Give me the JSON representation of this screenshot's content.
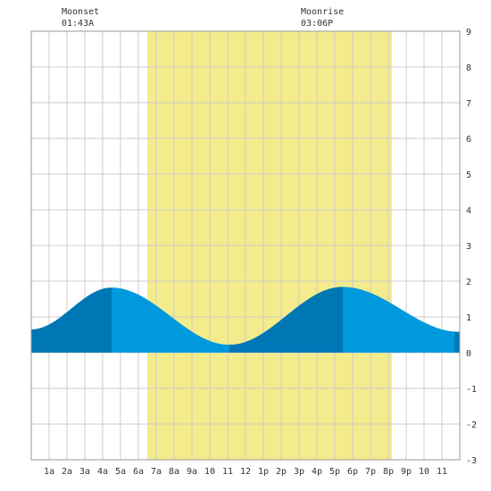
{
  "header": {
    "moonset_label": "Moonset",
    "moonset_time": "01:43A",
    "moonrise_label": "Moonrise",
    "moonrise_time": "03:06P"
  },
  "colors": {
    "background": "#ffffff",
    "grid": "#cccccc",
    "daylight": "#f3eb8c",
    "tide_light": "#0099dd",
    "tide_dark": "#0077b5",
    "text": "#333333"
  },
  "chart_data": {
    "type": "area",
    "title": "",
    "xlabel": "",
    "ylabel": "",
    "x_unit": "hour of day",
    "xlim": [
      0,
      24
    ],
    "ylim": [
      -3,
      9
    ],
    "y_ticks": [
      -3,
      -2,
      -1,
      0,
      1,
      2,
      3,
      4,
      5,
      6,
      7,
      8,
      9
    ],
    "x_ticks": [
      1,
      2,
      3,
      4,
      5,
      6,
      7,
      8,
      9,
      10,
      11,
      12,
      13,
      14,
      15,
      16,
      17,
      18,
      19,
      20,
      21,
      22,
      23
    ],
    "x_tick_labels": [
      "1a",
      "2a",
      "3a",
      "4a",
      "5a",
      "6a",
      "7a",
      "8a",
      "9a",
      "10",
      "11",
      "12",
      "1p",
      "2p",
      "3p",
      "4p",
      "5p",
      "6p",
      "7p",
      "8p",
      "9p",
      "10",
      "11"
    ],
    "grid": true,
    "daylight": {
      "start": 6.5,
      "end": 20.2
    },
    "moon_events": [
      {
        "label": "Moonset",
        "time": "01:43A",
        "hour": 1.72
      },
      {
        "label": "Moonrise",
        "time": "03:06P",
        "hour": 15.1
      }
    ],
    "tide_extremes": [
      {
        "hour": 0.0,
        "value": 0.65
      },
      {
        "hour": 4.5,
        "value": 1.82
      },
      {
        "hour": 11.1,
        "value": 0.22
      },
      {
        "hour": 17.45,
        "value": 1.84
      },
      {
        "hour": 24.0,
        "value": 0.58
      }
    ],
    "dark_bands": [
      [
        0.0,
        4.5
      ],
      [
        11.1,
        17.45
      ],
      [
        23.7,
        24.0
      ]
    ]
  }
}
